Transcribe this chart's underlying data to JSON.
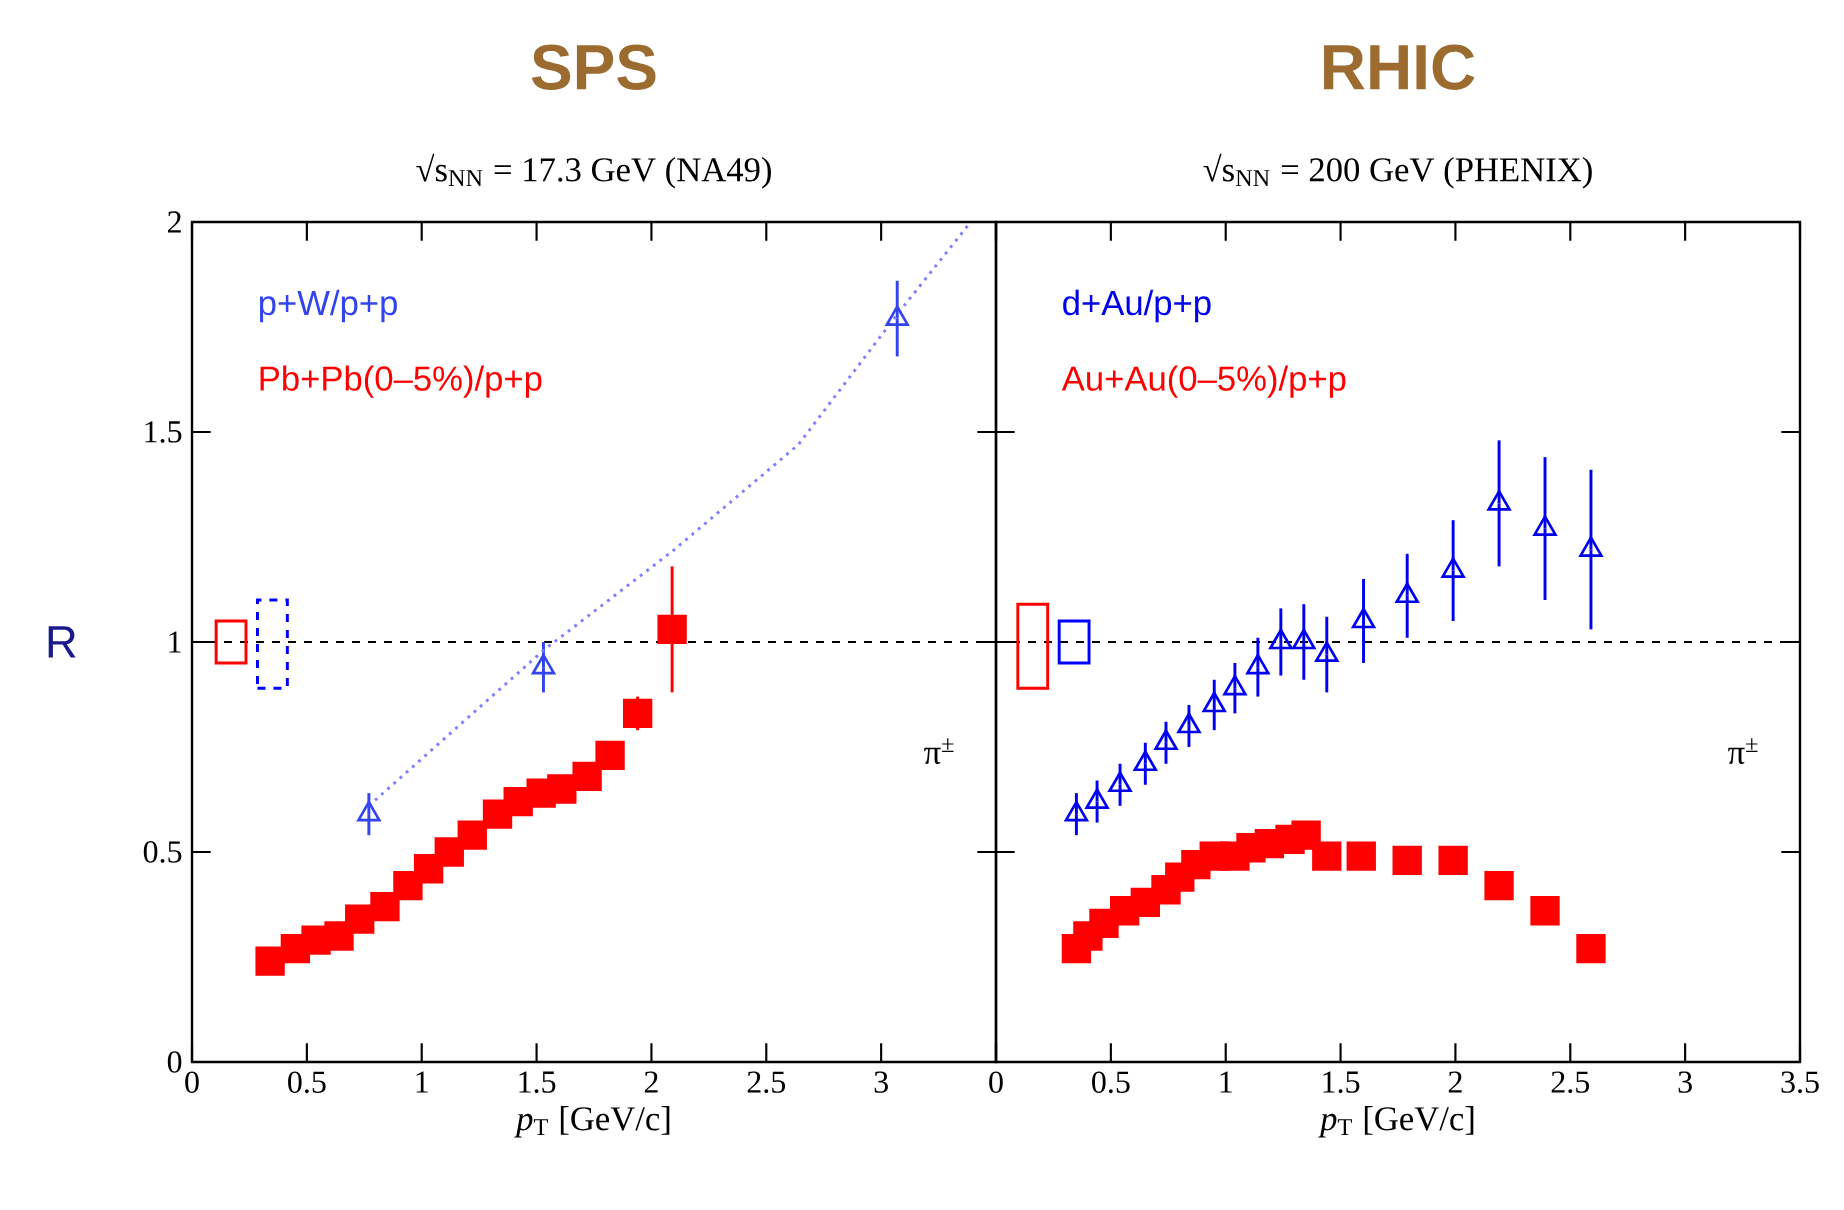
{
  "chart_data": [
    {
      "type": "scatter",
      "title": "SPS",
      "subtitle": "√s$_{NN}$ = 17.3 GeV  (NA49)",
      "xlabel": "*p*$_{T}$  [GeV/c]",
      "ylabel": "R",
      "xlim": [
        0,
        3.5
      ],
      "ylim": [
        0,
        2
      ],
      "xticks": [
        0,
        0.5,
        1,
        1.5,
        2,
        2.5,
        3,
        {
          "value": 3.5,
          "label": null
        }
      ],
      "yticks": [
        0,
        0.5,
        1,
        1.5,
        2
      ],
      "legend": "top left",
      "annotations": [
        "π$^{±}$"
      ],
      "ref_lines": [
        {
          "axis": "y",
          "value": 1,
          "color": "#000000",
          "line_style": "dashed"
        }
      ],
      "series": [
        {
          "name": "p+W/p+p",
          "marker": "triangle",
          "color": "#3344ee",
          "x": [
            0.77,
            1.53,
            3.07
          ],
          "values": [
            0.59,
            0.94,
            1.77
          ],
          "errors": [
            0.05,
            0.06,
            0.09
          ]
        },
        {
          "name": "Pb+Pb(0–5%)/p+p",
          "marker": "square",
          "color": "#ff0000",
          "x": [
            0.34,
            0.45,
            0.54,
            0.64,
            0.73,
            0.84,
            0.94,
            1.03,
            1.12,
            1.22,
            1.33,
            1.42,
            1.52,
            1.61,
            1.72,
            1.82,
            1.94,
            2.09
          ],
          "values": [
            0.24,
            0.27,
            0.29,
            0.3,
            0.34,
            0.37,
            0.42,
            0.46,
            0.5,
            0.54,
            0.59,
            0.62,
            0.64,
            0.65,
            0.68,
            0.73,
            0.83,
            1.03
          ],
          "errors": [
            null,
            null,
            null,
            null,
            null,
            null,
            null,
            null,
            null,
            null,
            null,
            null,
            null,
            null,
            null,
            null,
            0.04,
            0.15
          ]
        },
        {
          "type": "line",
          "line_style": "dotted",
          "color": "#8080ff",
          "x": [
            0.77,
            1.53,
            2.1,
            2.64,
            3.07,
            3.39
          ],
          "values": [
            0.61,
            0.98,
            1.22,
            1.47,
            1.78,
            2.0
          ]
        },
        {
          "type": "bar",
          "color": "#ff0000",
          "x": [
            0.17
          ],
          "base": [
            0.95
          ],
          "values": [
            0.1
          ]
        },
        {
          "type": "bar",
          "line_style": "dashed",
          "color": "#0000ff",
          "x": [
            0.35
          ],
          "base": [
            0.89
          ],
          "values": [
            0.21
          ]
        }
      ]
    },
    {
      "type": "scatter",
      "title": "RHIC",
      "subtitle": "√s$_{NN}$ = 200 GeV  (PHENIX)",
      "xlabel": "*p*$_{T}$  [GeV/c]",
      "xlim": [
        0,
        3.5
      ],
      "ylim": [
        0,
        2
      ],
      "xticks": [
        0,
        0.5,
        1,
        1.5,
        2,
        2.5,
        3,
        3.5
      ],
      "yticks": [
        0,
        0.5,
        1,
        1.5,
        2
      ],
      "tick_labels": "x",
      "legend": "top left",
      "annotations": [
        "π$^{±}$"
      ],
      "ref_lines": [
        {
          "axis": "y",
          "value": 1,
          "color": "#000000",
          "line_style": "dashed"
        }
      ],
      "series": [
        {
          "name": "d+Au/p+p",
          "marker": "triangle",
          "color": "#0000ee",
          "x": [
            0.35,
            0.44,
            0.54,
            0.65,
            0.74,
            0.84,
            0.95,
            1.04,
            1.14,
            1.24,
            1.34,
            1.44,
            1.6,
            1.79,
            1.99,
            2.19,
            2.39,
            2.59
          ],
          "values": [
            0.59,
            0.62,
            0.66,
            0.71,
            0.76,
            0.8,
            0.85,
            0.89,
            0.94,
            1.0,
            1.0,
            0.97,
            1.05,
            1.11,
            1.17,
            1.33,
            1.27,
            1.22
          ],
          "errors": [
            0.05,
            0.05,
            0.05,
            0.05,
            0.05,
            0.05,
            0.06,
            0.06,
            0.07,
            0.08,
            0.09,
            0.09,
            0.1,
            0.1,
            0.12,
            0.15,
            0.17,
            0.19
          ]
        },
        {
          "name": "Au+Au(0–5%)/p+p",
          "marker": "square",
          "color": "#ff0000",
          "x": [
            0.35,
            0.4,
            0.47,
            0.56,
            0.65,
            0.74,
            0.8,
            0.87,
            0.95,
            1.04,
            1.11,
            1.19,
            1.28,
            1.35,
            1.44,
            1.59,
            1.79,
            1.99,
            2.19,
            2.39,
            2.59
          ],
          "values": [
            0.27,
            0.3,
            0.33,
            0.36,
            0.38,
            0.41,
            0.44,
            0.47,
            0.49,
            0.49,
            0.51,
            0.52,
            0.53,
            0.54,
            0.49,
            0.49,
            0.48,
            0.48,
            0.42,
            0.36,
            0.27
          ]
        },
        {
          "type": "bar",
          "color": "#ff0000",
          "x": [
            0.16
          ],
          "base": [
            0.89
          ],
          "values": [
            0.2
          ]
        },
        {
          "type": "bar",
          "color": "#0000ff",
          "x": [
            0.34
          ],
          "base": [
            0.95
          ],
          "values": [
            0.1
          ]
        }
      ]
    }
  ]
}
